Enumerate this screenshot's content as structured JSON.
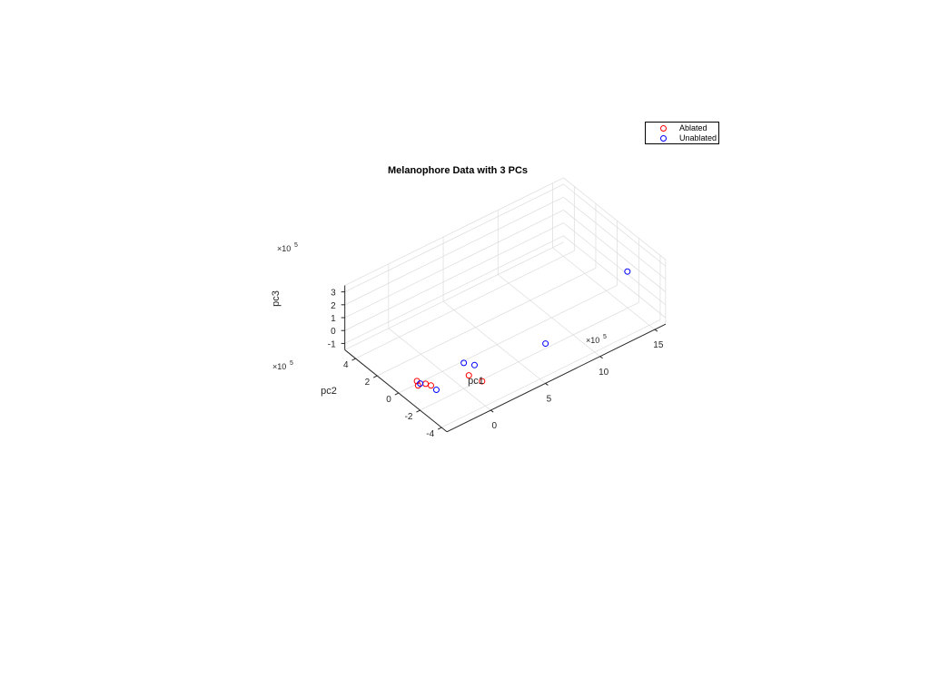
{
  "chart_data": {
    "type": "scatter",
    "title": "Melanophore Data with 3 PCs",
    "xlabel": "pc1",
    "ylabel": "pc2",
    "zlabel": "pc3",
    "x_exponent_base": "×10",
    "x_exponent_power": "5",
    "y_exponent_base": "×10",
    "y_exponent_power": "5",
    "z_exponent_base": "×10",
    "z_exponent_power": "5",
    "xlim": [
      -4,
      16
    ],
    "ylim": [
      -4.5,
      5
    ],
    "zlim": [
      -1.5,
      3.5
    ],
    "xticks": [
      0,
      5,
      10,
      15
    ],
    "yticks": [
      -4,
      -2,
      0,
      2,
      4
    ],
    "zticks": [
      -1,
      0,
      1,
      2,
      3
    ],
    "grid": true,
    "legend_position": "top-right",
    "series": [
      {
        "name": "Ablated",
        "color": "#ff0000",
        "points": [
          {
            "x": -1.5,
            "y": -4.0,
            "z": 1.5
          },
          {
            "x": -3.0,
            "y": -2.0,
            "z": 0.0
          },
          {
            "x": -3.0,
            "y": -1.5,
            "z": -0.2
          },
          {
            "x": -3.3,
            "y": -1.0,
            "z": -0.2
          },
          {
            "x": -3.0,
            "y": -0.8,
            "z": -0.8
          },
          {
            "x": 0.2,
            "y": -3.5,
            "z": 0.0
          }
        ]
      },
      {
        "name": "Unablated",
        "color": "#0000ff",
        "points": [
          {
            "x": -3.2,
            "y": -1.2,
            "z": -0.3
          },
          {
            "x": -3.0,
            "y": -2.5,
            "z": 0.0
          },
          {
            "x": 0.0,
            "y": -2.0,
            "z": 0.5
          },
          {
            "x": 0.0,
            "y": -3.0,
            "z": 1.0
          },
          {
            "x": 6.0,
            "y": -3.5,
            "z": 0.5
          },
          {
            "x": 13.0,
            "y": -4.0,
            "z": 3.5
          }
        ]
      }
    ]
  }
}
